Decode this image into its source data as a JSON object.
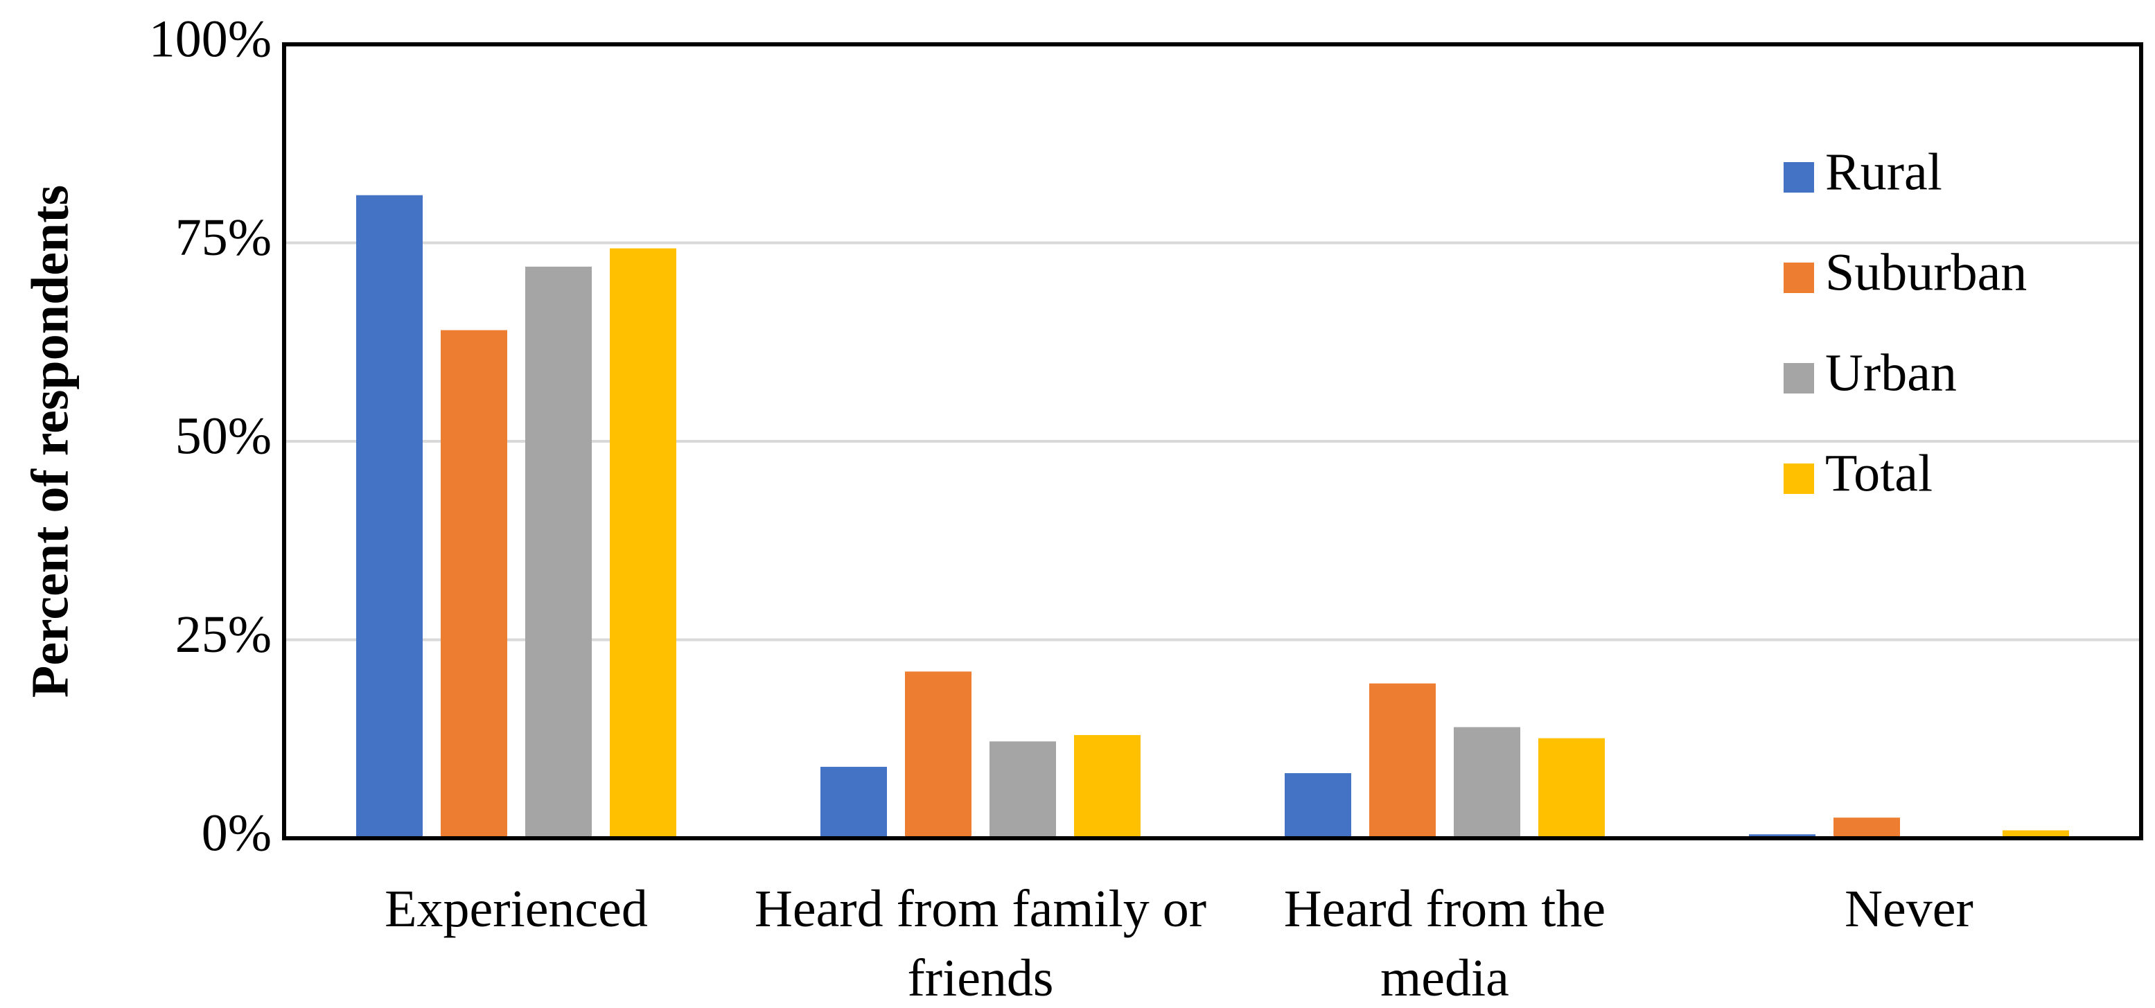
{
  "chart_data": {
    "type": "bar",
    "y_label": "Percent of respondents",
    "categories": [
      "Experienced",
      "Heard from family or friends",
      "Heard from the media",
      "Never"
    ],
    "series": [
      {
        "name": "Rural",
        "color": "#4472c4",
        "values": [
          81,
          9,
          8.2,
          0.5
        ]
      },
      {
        "name": "Suburban",
        "color": "#ed7d31",
        "values": [
          64,
          21,
          19.5,
          2.6
        ]
      },
      {
        "name": "Urban",
        "color": "#a5a5a5",
        "values": [
          72,
          12.2,
          14,
          0
        ]
      },
      {
        "name": "Total",
        "color": "#ffc000",
        "values": [
          74.3,
          13,
          12.6,
          1
        ]
      }
    ],
    "ylim": [
      0,
      100
    ],
    "yticks": [
      {
        "value": 0,
        "label": "0%"
      },
      {
        "value": 25,
        "label": "25%"
      },
      {
        "value": 50,
        "label": "50%"
      },
      {
        "value": 75,
        "label": "75%"
      },
      {
        "value": 100,
        "label": "100%"
      }
    ],
    "grid": true,
    "legend": "right"
  }
}
